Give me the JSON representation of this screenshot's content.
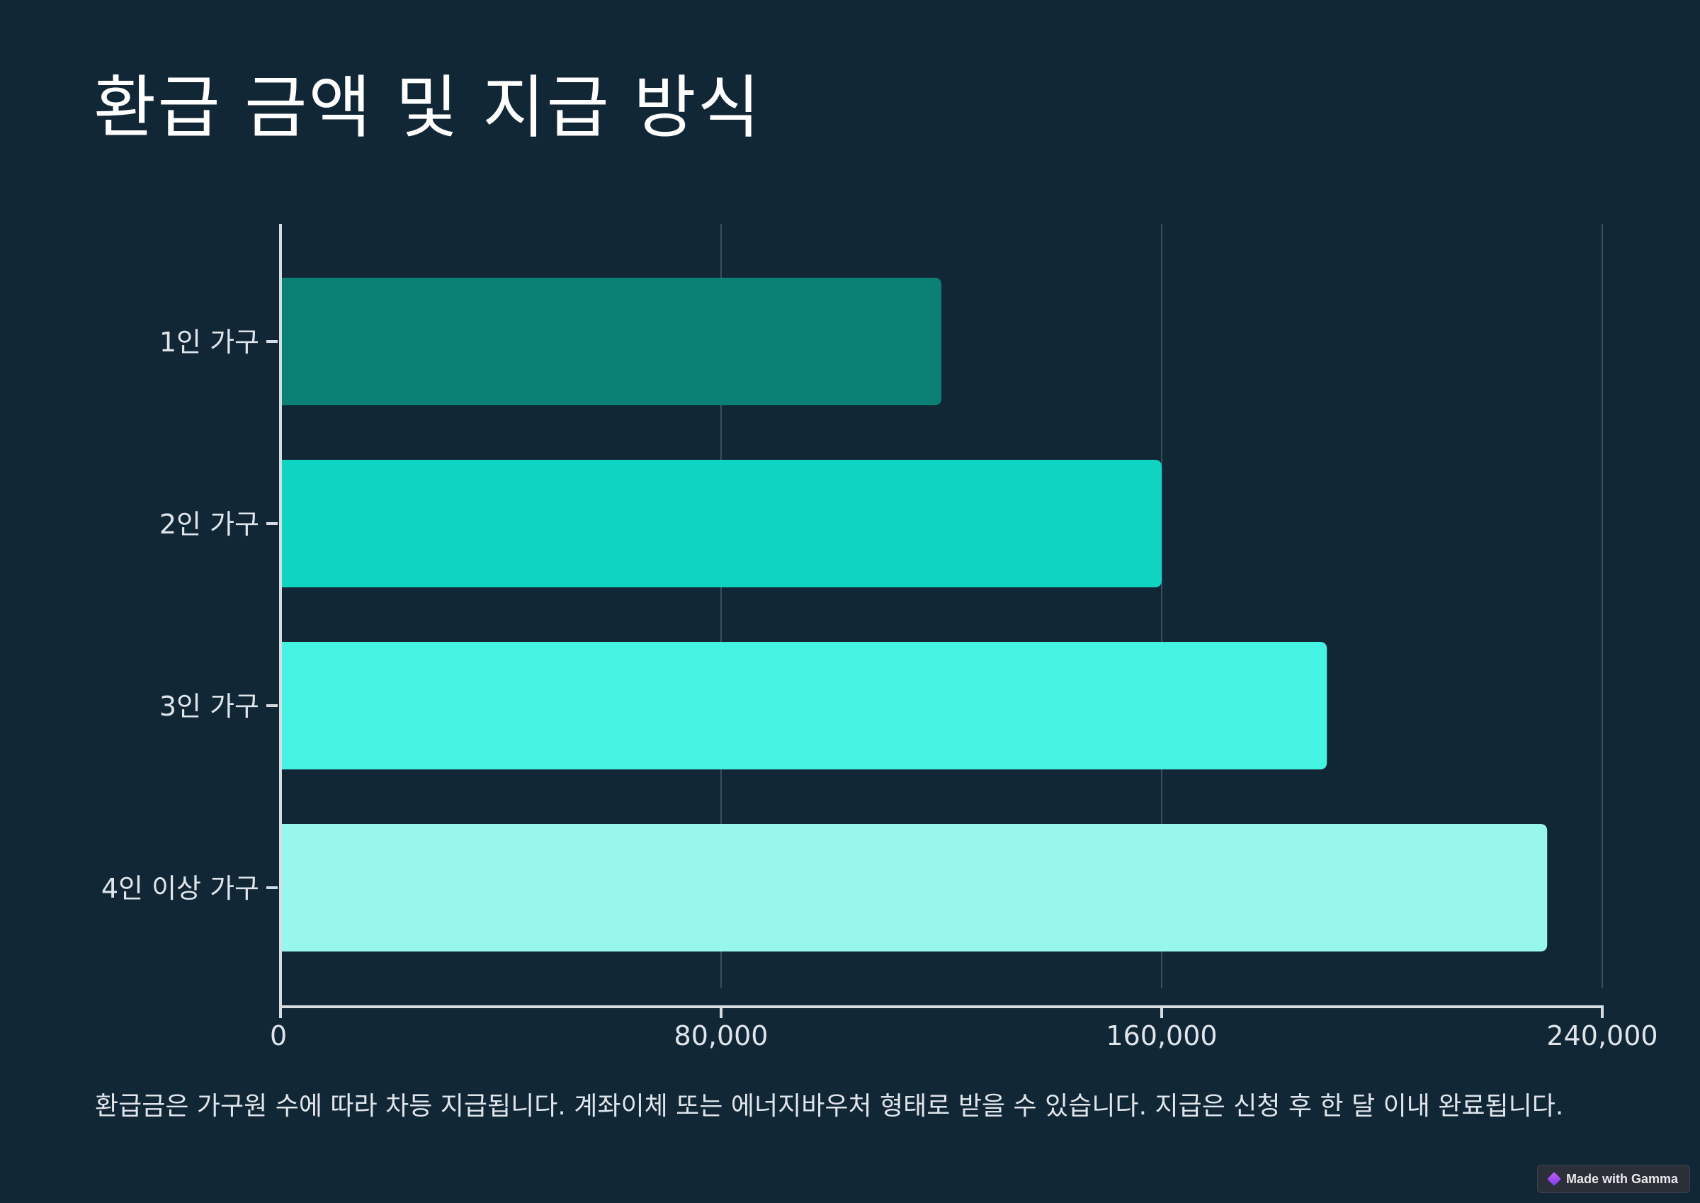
{
  "page": {
    "title": "환급 금액 및 지급 방식",
    "caption": "환급금은 가구원 수에 따라 차등 지급됩니다. 계좌이체 또는 에너지바우처 형태로 받을 수 있습니다. 지급은 신청 후 한 달 이내 완료됩니다.",
    "badge_label": "Made with Gamma",
    "badge_icon": "gamma-logo-icon"
  },
  "chart_data": {
    "type": "bar",
    "orientation": "horizontal",
    "title": "",
    "xlabel": "",
    "ylabel": "",
    "categories": [
      "1인 가구",
      "2인 가구",
      "3인 가구",
      "4인 이상 가구"
    ],
    "values": [
      120000,
      160000,
      190000,
      230000
    ],
    "xlim": [
      0,
      240000
    ],
    "xticks": [
      0,
      80000,
      160000,
      240000
    ],
    "xtick_labels": [
      "0",
      "80,000",
      "160,000",
      "240,000"
    ],
    "bar_colors": [
      "#0b8075",
      "#0fd4c2",
      "#45f3e2",
      "#98f7ec"
    ],
    "grid": true,
    "legend": false
  }
}
